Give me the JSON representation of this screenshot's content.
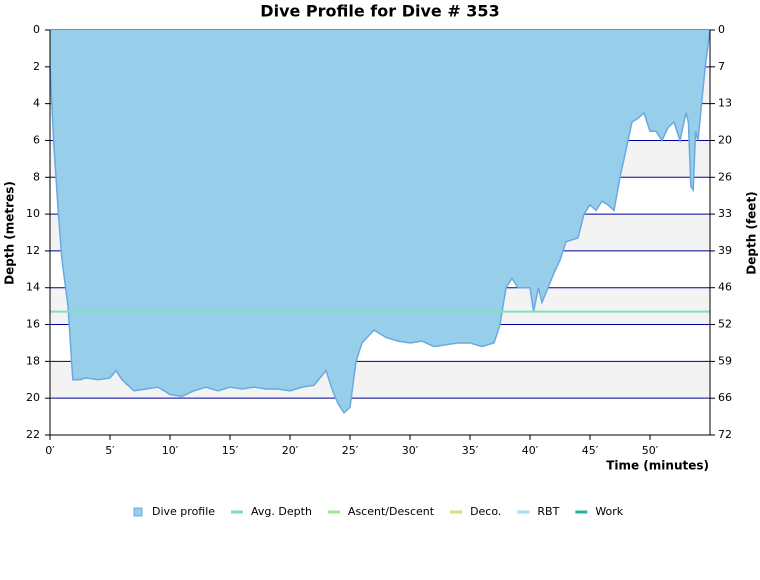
{
  "chart_data": {
    "type": "area",
    "title": "Dive Profile for Dive # 353",
    "x_label": "Time (minutes)",
    "y_label": "Depth (metres)",
    "y2_label": "Depth (feet)",
    "y_inverted": true,
    "xlim": [
      0,
      55
    ],
    "xticks": [
      {
        "value": 0,
        "label": "0′"
      },
      {
        "value": 5,
        "label": "5′"
      },
      {
        "value": 10,
        "label": "10′"
      },
      {
        "value": 15,
        "label": "15′"
      },
      {
        "value": 20,
        "label": "20′"
      },
      {
        "value": 25,
        "label": "25′"
      },
      {
        "value": 30,
        "label": "30′"
      },
      {
        "value": 35,
        "label": "35′"
      },
      {
        "value": 40,
        "label": "40′"
      },
      {
        "value": 45,
        "label": "45′"
      },
      {
        "value": 50,
        "label": "50′"
      }
    ],
    "ylim": [
      0,
      22
    ],
    "yticks": [
      0,
      2,
      4,
      6,
      8,
      10,
      12,
      14,
      16,
      18,
      20,
      22
    ],
    "y2lim": [
      0,
      72.18
    ],
    "y2ticks": [
      0,
      {
        "value": 6.56,
        "label": "7"
      },
      {
        "value": 13.12,
        "label": "13"
      },
      {
        "value": 19.69,
        "label": "20"
      },
      {
        "value": 26.25,
        "label": "26"
      },
      {
        "value": 32.81,
        "label": "33"
      },
      {
        "value": 39.37,
        "label": "39"
      },
      {
        "value": 45.93,
        "label": "46"
      },
      {
        "value": 52.49,
        "label": "52"
      },
      {
        "value": 59.06,
        "label": "59"
      },
      {
        "value": 65.62,
        "label": "66"
      },
      {
        "value": 72.18,
        "label": "72"
      }
    ],
    "grid": true,
    "grid_color": "#000099",
    "band_color": "#f3f3f3",
    "x": [
      0,
      0.3,
      0.7,
      1.0,
      1.5,
      1.9,
      2.5,
      3,
      4,
      5,
      5.5,
      6,
      7,
      8,
      9,
      10,
      11,
      12,
      13,
      14,
      15,
      16,
      17,
      18,
      19,
      20,
      21,
      22,
      23,
      23.5,
      24,
      24.5,
      25,
      25.5,
      26,
      27,
      28,
      29,
      30,
      31,
      32,
      33,
      34,
      35,
      36,
      37,
      37.5,
      38,
      38.5,
      39,
      40,
      40.3,
      40.7,
      41,
      41.5,
      42,
      42.5,
      43,
      44,
      44.5,
      45,
      45.5,
      46,
      46.5,
      47,
      47.5,
      48,
      48.5,
      49,
      49.5,
      50,
      50.5,
      51,
      51.5,
      52,
      52.5,
      53,
      53.2,
      53.4,
      53.6,
      53.8,
      54,
      54.3,
      54.6,
      55
    ],
    "series": [
      {
        "name": "Dive profile",
        "color": "#97cfea",
        "line_color": "#6aa9e0",
        "values": [
          2,
          6,
          10,
          12.5,
          15,
          19,
          19,
          18.9,
          19,
          18.9,
          18.5,
          19,
          19.6,
          19.5,
          19.4,
          19.8,
          19.9,
          19.6,
          19.4,
          19.6,
          19.4,
          19.5,
          19.4,
          19.5,
          19.5,
          19.6,
          19.4,
          19.3,
          18.5,
          19.5,
          20.3,
          20.8,
          20.5,
          18,
          17,
          16.3,
          16.7,
          16.9,
          17,
          16.9,
          17.2,
          17.1,
          17,
          17,
          17.2,
          17,
          16,
          14,
          13.5,
          14,
          14,
          15.3,
          14,
          14.8,
          14,
          13.2,
          12.5,
          11.5,
          11.3,
          10,
          9.5,
          9.8,
          9.3,
          9.5,
          9.8,
          8,
          6.5,
          5,
          4.8,
          4.5,
          5.5,
          5.5,
          6,
          5.3,
          5,
          6,
          4.5,
          5,
          8.5,
          8.7,
          5.5,
          6,
          4,
          2,
          0
        ]
      },
      {
        "name": "Avg. Depth",
        "color": "#7fe0b8",
        "value": 15.3
      },
      {
        "name": "Ascent/Descent",
        "color": "#9be88f"
      },
      {
        "name": "Deco.",
        "color": "#d6e27a"
      },
      {
        "name": "RBT",
        "color": "#a3dcf2"
      },
      {
        "name": "Work",
        "color": "#21b59c"
      }
    ]
  }
}
